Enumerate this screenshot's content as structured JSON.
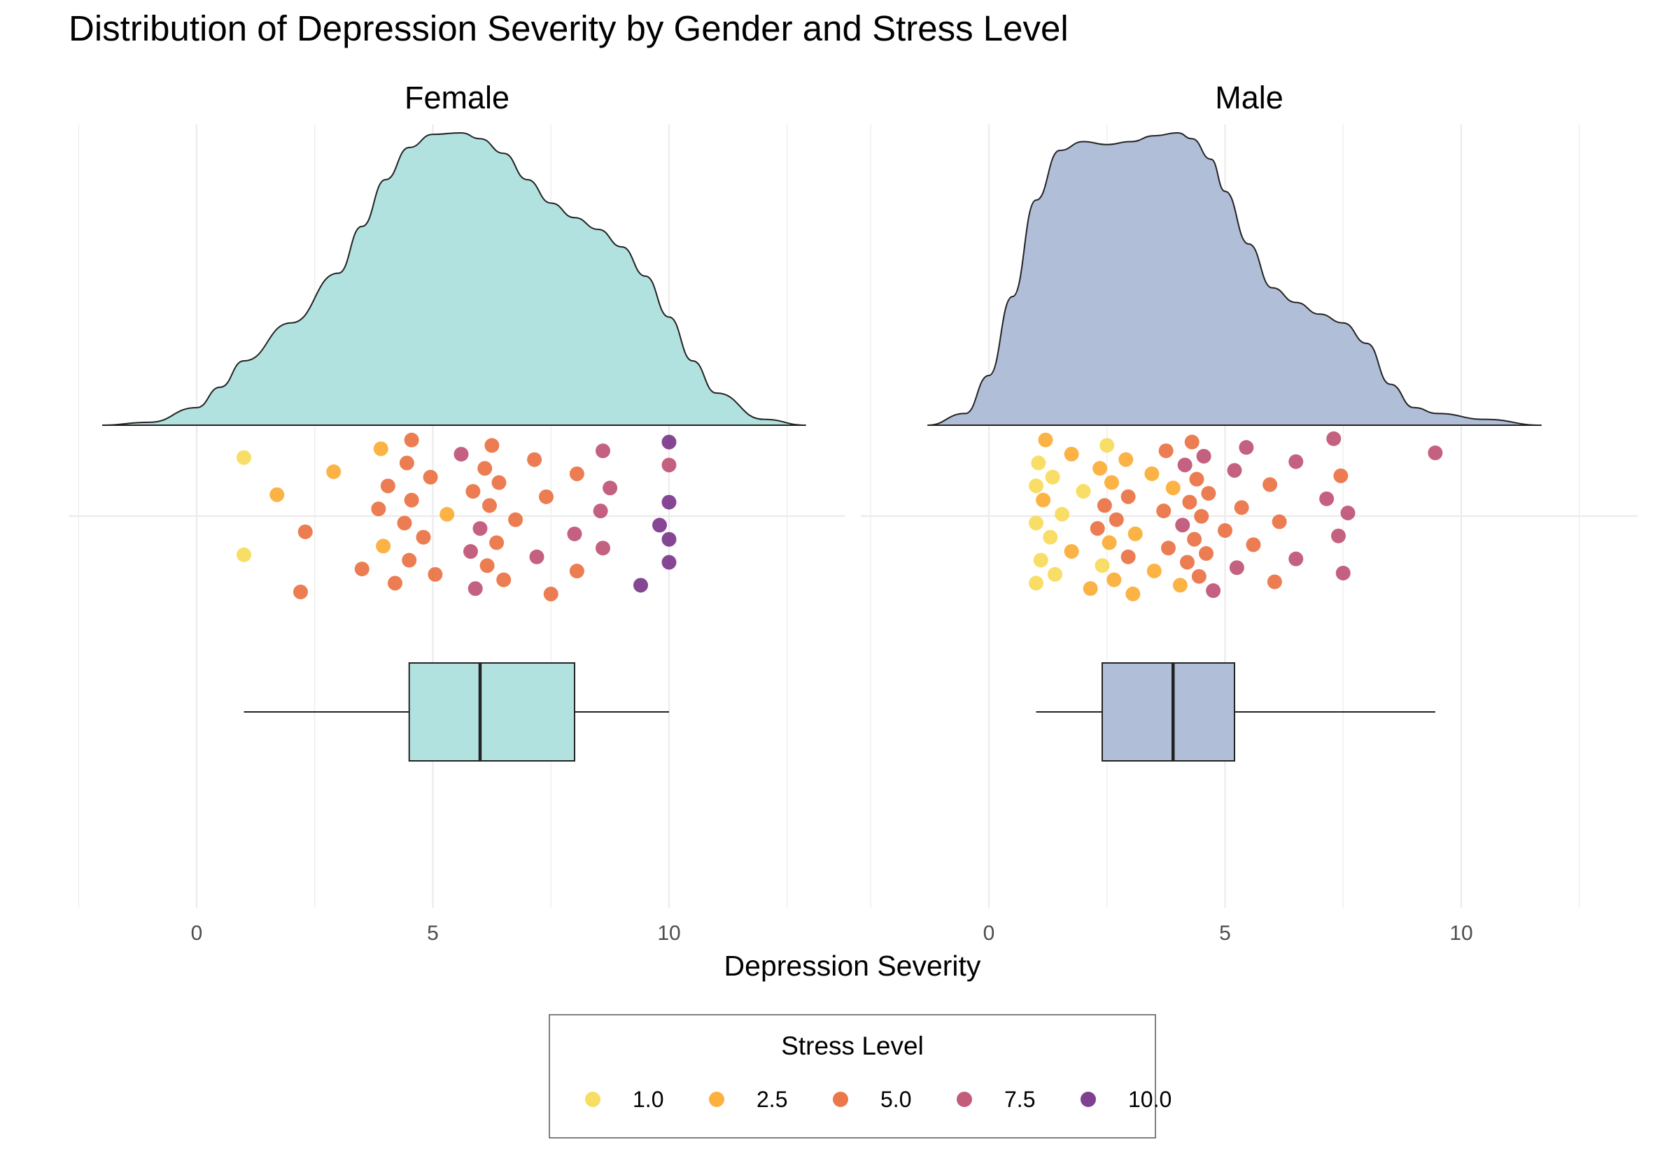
{
  "chart_data": {
    "type": "raincloud",
    "title": "Distribution of Depression Severity by Gender and Stress Level",
    "xlabel": "Depression Severity",
    "x_ticks": [
      0,
      5,
      10
    ],
    "xlim": [
      -2.5,
      13.5
    ],
    "grid": true,
    "legend": {
      "title": "Stress Level",
      "position": "bottom",
      "entries": [
        {
          "label": "1.0",
          "value": 1.0,
          "color": "#F6D746"
        },
        {
          "label": "2.5",
          "value": 2.5,
          "color": "#FBA21C"
        },
        {
          "label": "5.0",
          "value": 5.0,
          "color": "#E8602C"
        },
        {
          "label": "7.5",
          "value": 7.5,
          "color": "#B83E64"
        },
        {
          "label": "10.0",
          "value": 10.0,
          "color": "#6A1F7D"
        }
      ]
    },
    "panels": [
      {
        "name": "Female",
        "fill": "#B2E2DF",
        "density": {
          "x": [
            -2,
            -1,
            0,
            0.5,
            1,
            2,
            3,
            3.5,
            4,
            4.5,
            5,
            5.6,
            6,
            6.5,
            7,
            7.5,
            8,
            8.5,
            9,
            9.5,
            10,
            10.5,
            11,
            12,
            12.9
          ],
          "y": [
            0,
            0.01,
            0.06,
            0.13,
            0.22,
            0.35,
            0.52,
            0.68,
            0.84,
            0.95,
            0.995,
            1.0,
            0.98,
            0.93,
            0.84,
            0.76,
            0.71,
            0.67,
            0.61,
            0.51,
            0.37,
            0.22,
            0.11,
            0.02,
            0
          ]
        },
        "box": {
          "min": 1.0,
          "q1": 4.5,
          "median": 6.0,
          "q3": 8.0,
          "max": 10.0
        },
        "points": [
          {
            "x": 1.0,
            "stress": 1
          },
          {
            "x": 1.0,
            "stress": 1
          },
          {
            "x": 1.7,
            "stress": 2
          },
          {
            "x": 2.2,
            "stress": 4
          },
          {
            "x": 2.3,
            "stress": 4
          },
          {
            "x": 2.9,
            "stress": 3
          },
          {
            "x": 3.5,
            "stress": 4
          },
          {
            "x": 3.85,
            "stress": 5
          },
          {
            "x": 3.9,
            "stress": 3
          },
          {
            "x": 3.95,
            "stress": 3
          },
          {
            "x": 4.05,
            "stress": 6
          },
          {
            "x": 4.2,
            "stress": 4
          },
          {
            "x": 4.4,
            "stress": 5
          },
          {
            "x": 4.45,
            "stress": 5
          },
          {
            "x": 4.5,
            "stress": 5
          },
          {
            "x": 4.55,
            "stress": 5
          },
          {
            "x": 4.55,
            "stress": 5
          },
          {
            "x": 4.8,
            "stress": 5
          },
          {
            "x": 4.95,
            "stress": 5
          },
          {
            "x": 5.05,
            "stress": 4
          },
          {
            "x": 5.3,
            "stress": 3
          },
          {
            "x": 5.6,
            "stress": 7
          },
          {
            "x": 5.8,
            "stress": 7
          },
          {
            "x": 5.85,
            "stress": 5
          },
          {
            "x": 5.9,
            "stress": 7
          },
          {
            "x": 6.0,
            "stress": 7
          },
          {
            "x": 6.1,
            "stress": 6
          },
          {
            "x": 6.15,
            "stress": 6
          },
          {
            "x": 6.2,
            "stress": 6
          },
          {
            "x": 6.25,
            "stress": 6
          },
          {
            "x": 6.35,
            "stress": 5
          },
          {
            "x": 6.4,
            "stress": 6
          },
          {
            "x": 6.5,
            "stress": 5
          },
          {
            "x": 6.75,
            "stress": 6
          },
          {
            "x": 7.15,
            "stress": 6
          },
          {
            "x": 7.2,
            "stress": 7
          },
          {
            "x": 7.4,
            "stress": 5
          },
          {
            "x": 7.5,
            "stress": 6
          },
          {
            "x": 8.0,
            "stress": 7
          },
          {
            "x": 8.05,
            "stress": 6
          },
          {
            "x": 8.05,
            "stress": 6
          },
          {
            "x": 8.55,
            "stress": 7
          },
          {
            "x": 8.6,
            "stress": 7
          },
          {
            "x": 8.6,
            "stress": 7
          },
          {
            "x": 8.75,
            "stress": 7
          },
          {
            "x": 9.4,
            "stress": 9
          },
          {
            "x": 9.8,
            "stress": 9
          },
          {
            "x": 10.0,
            "stress": 8
          },
          {
            "x": 10.0,
            "stress": 9
          },
          {
            "x": 10.0,
            "stress": 9
          },
          {
            "x": 10.0,
            "stress": 10
          },
          {
            "x": 10.0,
            "stress": 10
          }
        ]
      },
      {
        "name": "Male",
        "fill": "#B0BED8",
        "density": {
          "x": [
            -1.3,
            -0.5,
            0,
            0.5,
            1,
            1.5,
            2,
            2.5,
            3,
            3.5,
            4,
            4.3,
            4.7,
            5,
            5.5,
            6,
            6.5,
            7,
            7.5,
            8,
            8.5,
            9,
            9.5,
            10.5,
            11.7
          ],
          "y": [
            0,
            0.04,
            0.17,
            0.44,
            0.77,
            0.94,
            0.97,
            0.96,
            0.97,
            0.99,
            1.0,
            0.98,
            0.91,
            0.8,
            0.62,
            0.47,
            0.42,
            0.38,
            0.35,
            0.28,
            0.14,
            0.06,
            0.04,
            0.02,
            0
          ]
        },
        "box": {
          "min": 1.0,
          "q1": 2.4,
          "median": 3.9,
          "q3": 5.2,
          "max": 9.45
        },
        "points": [
          {
            "x": 1.0,
            "stress": 1
          },
          {
            "x": 1.0,
            "stress": 1
          },
          {
            "x": 1.0,
            "stress": 1
          },
          {
            "x": 1.05,
            "stress": 1
          },
          {
            "x": 1.1,
            "stress": 1
          },
          {
            "x": 1.15,
            "stress": 3
          },
          {
            "x": 1.2,
            "stress": 3
          },
          {
            "x": 1.3,
            "stress": 1
          },
          {
            "x": 1.35,
            "stress": 1
          },
          {
            "x": 1.4,
            "stress": 1
          },
          {
            "x": 1.55,
            "stress": 1
          },
          {
            "x": 1.75,
            "stress": 2
          },
          {
            "x": 1.75,
            "stress": 2
          },
          {
            "x": 2.0,
            "stress": 1
          },
          {
            "x": 2.15,
            "stress": 2
          },
          {
            "x": 2.3,
            "stress": 4
          },
          {
            "x": 2.35,
            "stress": 2
          },
          {
            "x": 2.4,
            "stress": 1
          },
          {
            "x": 2.45,
            "stress": 4
          },
          {
            "x": 2.5,
            "stress": 1
          },
          {
            "x": 2.55,
            "stress": 2
          },
          {
            "x": 2.6,
            "stress": 3
          },
          {
            "x": 2.65,
            "stress": 3
          },
          {
            "x": 2.7,
            "stress": 4
          },
          {
            "x": 2.9,
            "stress": 2
          },
          {
            "x": 2.95,
            "stress": 4
          },
          {
            "x": 2.95,
            "stress": 4
          },
          {
            "x": 3.05,
            "stress": 3
          },
          {
            "x": 3.1,
            "stress": 2
          },
          {
            "x": 3.45,
            "stress": 3
          },
          {
            "x": 3.5,
            "stress": 3
          },
          {
            "x": 3.7,
            "stress": 4
          },
          {
            "x": 3.75,
            "stress": 4
          },
          {
            "x": 3.8,
            "stress": 4
          },
          {
            "x": 3.9,
            "stress": 2
          },
          {
            "x": 4.05,
            "stress": 3
          },
          {
            "x": 4.1,
            "stress": 7
          },
          {
            "x": 4.15,
            "stress": 7
          },
          {
            "x": 4.2,
            "stress": 5
          },
          {
            "x": 4.25,
            "stress": 5
          },
          {
            "x": 4.3,
            "stress": 5
          },
          {
            "x": 4.35,
            "stress": 6
          },
          {
            "x": 4.4,
            "stress": 6
          },
          {
            "x": 4.45,
            "stress": 6
          },
          {
            "x": 4.5,
            "stress": 6
          },
          {
            "x": 4.55,
            "stress": 7
          },
          {
            "x": 4.6,
            "stress": 5
          },
          {
            "x": 4.65,
            "stress": 5
          },
          {
            "x": 4.75,
            "stress": 7
          },
          {
            "x": 5.0,
            "stress": 5
          },
          {
            "x": 5.2,
            "stress": 7
          },
          {
            "x": 5.25,
            "stress": 7
          },
          {
            "x": 5.35,
            "stress": 6
          },
          {
            "x": 5.45,
            "stress": 7
          },
          {
            "x": 5.6,
            "stress": 5
          },
          {
            "x": 5.95,
            "stress": 6
          },
          {
            "x": 6.05,
            "stress": 6
          },
          {
            "x": 6.15,
            "stress": 6
          },
          {
            "x": 6.5,
            "stress": 7
          },
          {
            "x": 6.5,
            "stress": 7
          },
          {
            "x": 7.15,
            "stress": 8
          },
          {
            "x": 7.3,
            "stress": 8
          },
          {
            "x": 7.4,
            "stress": 7
          },
          {
            "x": 7.45,
            "stress": 6
          },
          {
            "x": 7.5,
            "stress": 8
          },
          {
            "x": 7.6,
            "stress": 7
          },
          {
            "x": 9.45,
            "stress": 7
          }
        ]
      }
    ]
  }
}
